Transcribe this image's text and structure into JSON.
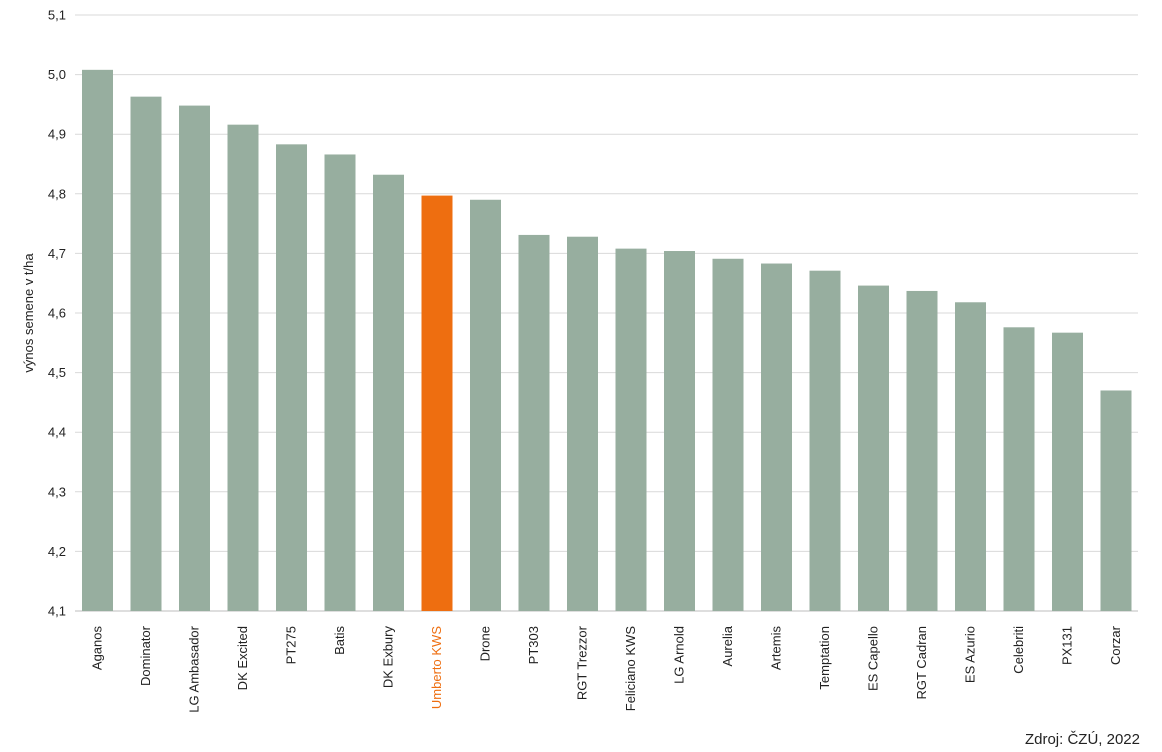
{
  "source_note": "Zdroj: ČZÚ, 2022",
  "chart_data": {
    "type": "bar",
    "ylabel": "výnos semene v t/ha",
    "xlabel": "",
    "ylim": [
      4.1,
      5.1
    ],
    "yticks": [
      4.1,
      4.2,
      4.3,
      4.4,
      4.5,
      4.6,
      4.7,
      4.8,
      4.9,
      5.0,
      5.1
    ],
    "ytick_labels": [
      "4,1",
      "4,2",
      "4,3",
      "4,4",
      "4,5",
      "4,6",
      "4,7",
      "4,8",
      "4,9",
      "5,0",
      "5,1"
    ],
    "grid": true,
    "categories": [
      "Aganos",
      "Dominator",
      "LG Ambasador",
      "DK Excited",
      "PT275",
      "Batis",
      "DK Exbury",
      "Umberto KWS",
      "Drone",
      "PT303",
      "RGT Trezzor",
      "Feliciano KWS",
      "LG Arnold",
      "Aurelia",
      "Artemis",
      "Temptation",
      "ES Capello",
      "RGT Cadran",
      "ES Azurio",
      "Celebriti",
      "PX131",
      "Corzar"
    ],
    "values": [
      5.008,
      4.963,
      4.948,
      4.916,
      4.883,
      4.866,
      4.832,
      4.797,
      4.79,
      4.731,
      4.728,
      4.708,
      4.704,
      4.691,
      4.683,
      4.671,
      4.646,
      4.637,
      4.618,
      4.576,
      4.567,
      4.47
    ],
    "highlight": "Umberto KWS",
    "colors": {
      "bar": "#97ae9f",
      "highlight": "#ee6e10",
      "grid": "#d9d9d9",
      "text": "#222222"
    }
  }
}
